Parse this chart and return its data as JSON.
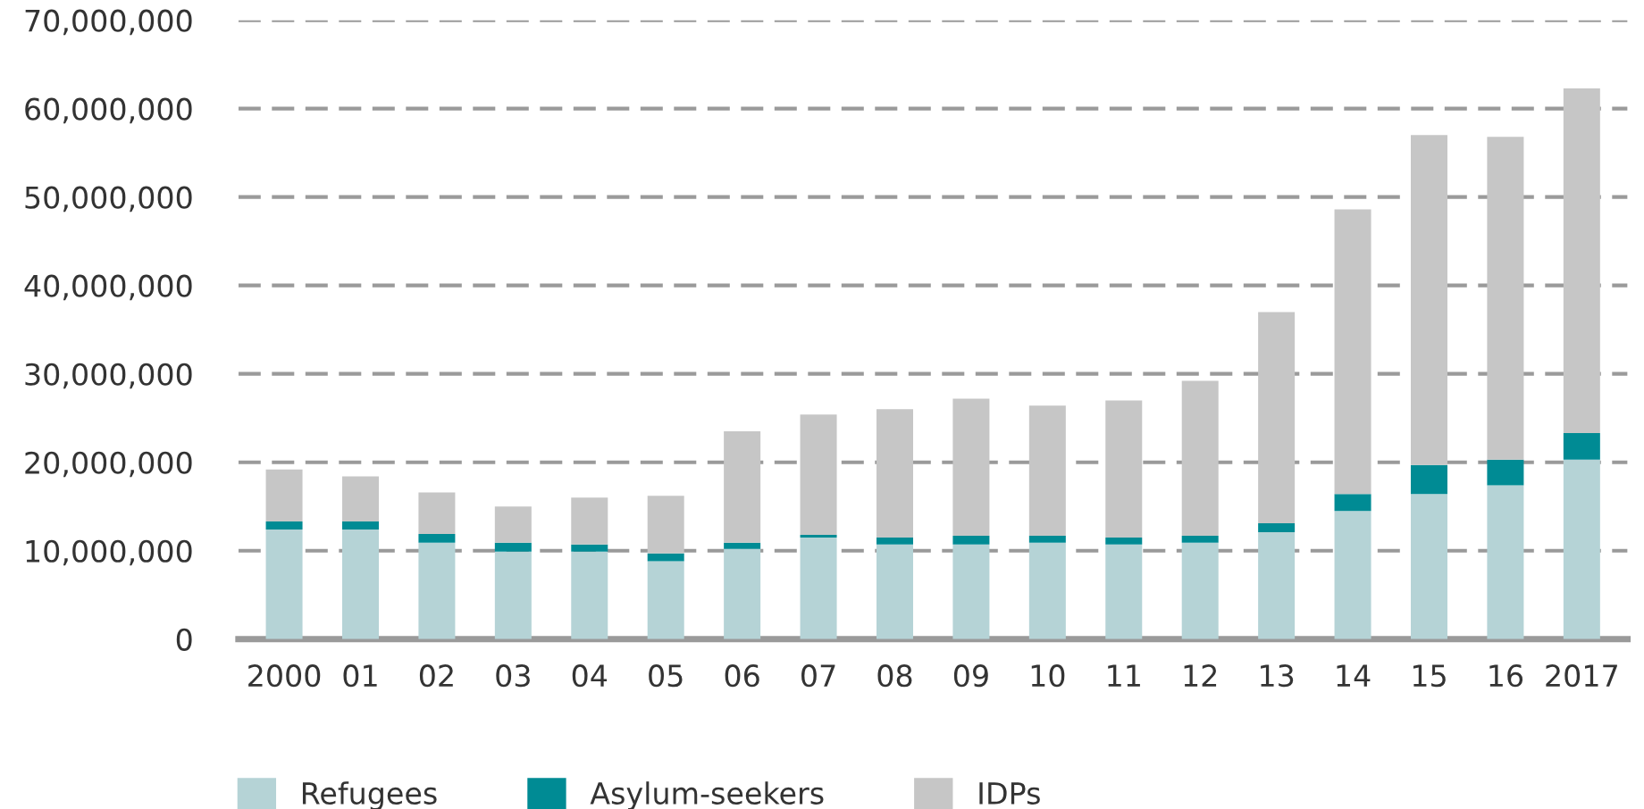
{
  "chart_data": {
    "type": "bar",
    "stacked": true,
    "categories": [
      "2000",
      "01",
      "02",
      "03",
      "04",
      "05",
      "06",
      "07",
      "08",
      "09",
      "10",
      "11",
      "12",
      "13",
      "14",
      "15",
      "16",
      "2017"
    ],
    "series": [
      {
        "name": "Refugees",
        "color": "#b5d3d6",
        "values": [
          12400000,
          12400000,
          10900000,
          9900000,
          9900000,
          8800000,
          10200000,
          11500000,
          10700000,
          10700000,
          10900000,
          10700000,
          10900000,
          12100000,
          14500000,
          16400000,
          17400000,
          20300000
        ]
      },
      {
        "name": "Asylum-seekers",
        "color": "#008b94",
        "values": [
          900000,
          900000,
          1000000,
          1000000,
          800000,
          900000,
          700000,
          300000,
          800000,
          1000000,
          800000,
          800000,
          800000,
          1000000,
          1900000,
          3300000,
          2900000,
          3000000
        ]
      },
      {
        "name": "IDPs",
        "color": "#c6c6c6",
        "values": [
          5900000,
          5100000,
          4700000,
          4100000,
          5300000,
          6500000,
          12600000,
          13600000,
          14500000,
          15500000,
          14700000,
          15500000,
          17500000,
          23900000,
          32200000,
          37300000,
          36500000,
          39000000
        ]
      }
    ],
    "ylim": [
      0,
      70000000
    ],
    "yticks": [
      {
        "value": 0,
        "label": "0"
      },
      {
        "value": 10000000,
        "label": "10,000,000"
      },
      {
        "value": 20000000,
        "label": "20,000,000"
      },
      {
        "value": 30000000,
        "label": "30,000,000"
      },
      {
        "value": 40000000,
        "label": "40,000,000"
      },
      {
        "value": 50000000,
        "label": "50,000,000"
      },
      {
        "value": 60000000,
        "label": "60,000,000"
      },
      {
        "value": 70000000,
        "label": "70,000,000"
      }
    ],
    "grid": "y",
    "legend": "bottom left"
  }
}
